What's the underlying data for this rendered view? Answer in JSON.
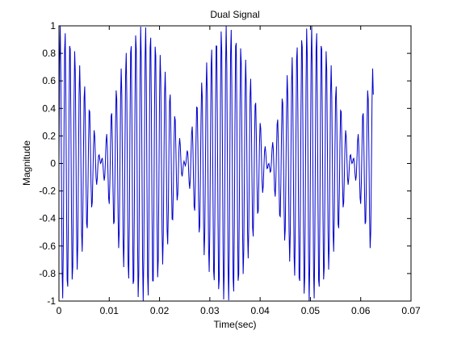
{
  "chart_data": {
    "type": "line",
    "title": "Dual Signal",
    "xlabel": "Time(sec)",
    "ylabel": "Magnitude",
    "xlim": [
      0,
      0.07
    ],
    "ylim": [
      -1,
      1
    ],
    "x_ticks": [
      "0",
      "0.01",
      "0.02",
      "0.03",
      "0.04",
      "0.05",
      "0.06",
      "0.07"
    ],
    "y_ticks": [
      "1",
      "0.8",
      "0.6",
      "0.4",
      "0.2",
      "0",
      "-0.2",
      "-0.4",
      "-0.6",
      "-0.8",
      "-1"
    ],
    "grid": false,
    "line_color": "#0000cc",
    "series": [
      {
        "description": "Sum of two sinusoids producing a beating pattern, sampled over 0 to ~0.0625 s",
        "x_start": 0,
        "x_end": 0.0625,
        "components": [
          {
            "amplitude": 0.5,
            "frequency_hz": 1000
          },
          {
            "amplitude": 0.5,
            "frequency_hz": 1060
          }
        ]
      }
    ]
  }
}
